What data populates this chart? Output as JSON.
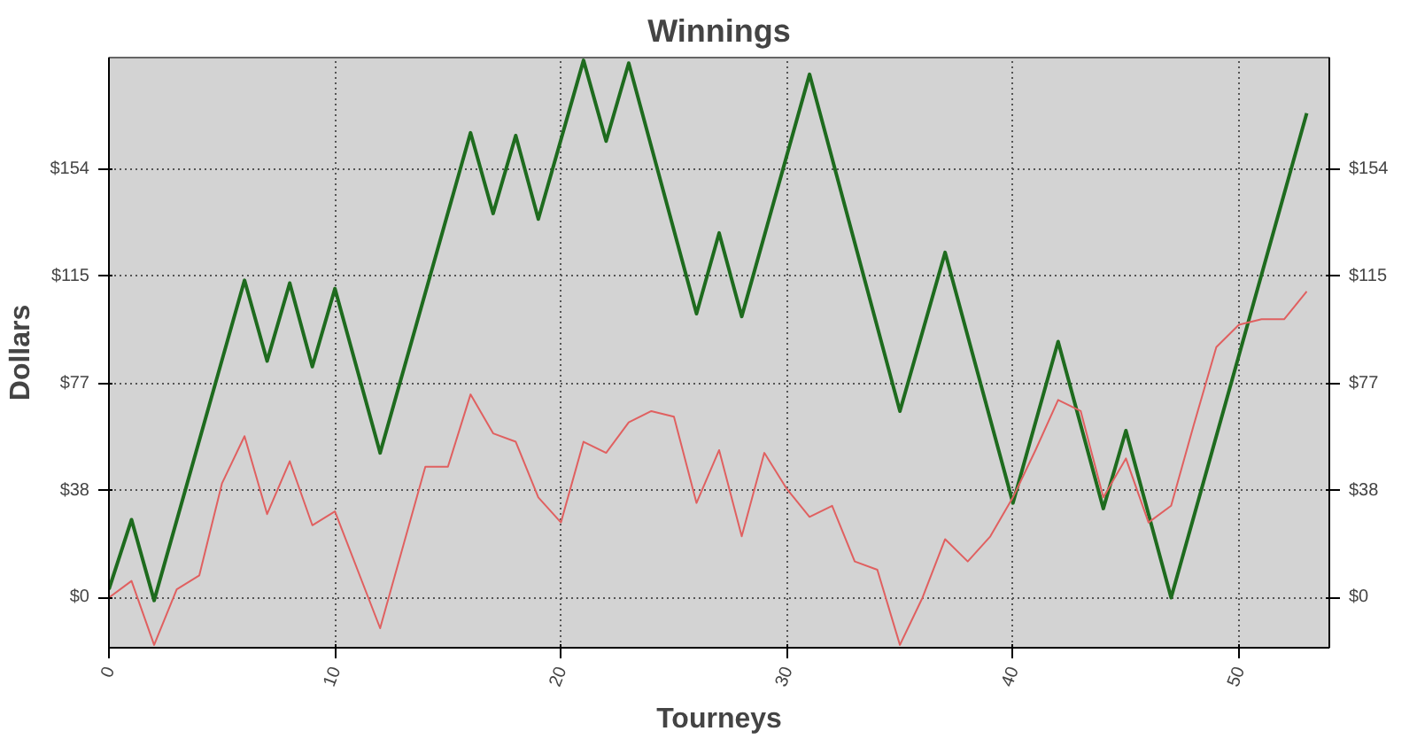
{
  "chart_data": {
    "type": "line",
    "title": "Winnings",
    "xlabel": "Tourneys",
    "ylabel": "Dollars",
    "xlim": [
      0,
      54
    ],
    "xticks": [
      0,
      10,
      20,
      30,
      40,
      50
    ],
    "ylim": [
      -18,
      194
    ],
    "yticks": [
      {
        "value": 0,
        "label": "$0"
      },
      {
        "value": 38.5,
        "label": "$38"
      },
      {
        "value": 77,
        "label": "$77"
      },
      {
        "value": 115.5,
        "label": "$115"
      },
      {
        "value": 154,
        "label": "$154"
      }
    ],
    "y2lim": [
      -18,
      194
    ],
    "y2ticks": [
      {
        "value": 0,
        "label": "$0"
      },
      {
        "value": 38.5,
        "label": "$38"
      },
      {
        "value": 77,
        "label": "$77"
      },
      {
        "value": 115.5,
        "label": "$115"
      },
      {
        "value": 154,
        "label": "$154"
      }
    ],
    "grid": true,
    "marker": "none",
    "line_style": "solid",
    "series": [
      {
        "color": "#1e6b1e",
        "x": [
          0,
          1,
          2,
          6,
          7,
          8,
          9,
          10,
          12,
          16,
          17,
          18,
          19,
          21,
          22,
          23,
          26,
          27,
          28,
          31,
          35,
          37,
          40,
          42,
          44,
          45,
          47,
          53
        ],
        "values": [
          3,
          28,
          -1,
          114,
          85,
          113,
          83,
          111,
          52,
          167,
          138,
          166,
          136,
          193,
          164,
          192,
          102,
          131,
          101,
          188,
          67,
          124,
          34,
          92,
          32,
          60,
          0,
          174
        ]
      },
      {
        "color": "#e06060",
        "x": [
          0,
          1,
          2,
          3,
          4,
          5,
          6,
          7,
          8,
          9,
          10,
          12,
          14,
          15,
          16,
          17,
          18,
          19,
          20,
          21,
          22,
          23,
          24,
          25,
          26,
          27,
          28,
          29,
          30,
          31,
          32,
          33,
          34,
          35,
          36,
          37,
          38,
          39,
          40,
          41,
          42,
          43,
          44,
          45,
          46,
          47,
          48,
          49,
          50,
          51,
          52,
          53
        ],
        "values": [
          0,
          6,
          -17,
          3,
          8,
          41,
          58,
          30,
          49,
          26,
          31,
          -11,
          47,
          47,
          73,
          59,
          56,
          36,
          27,
          56,
          52,
          63,
          67,
          65,
          34,
          53,
          22,
          52,
          39,
          29,
          33,
          13,
          10,
          -17,
          0,
          21,
          13,
          22,
          36,
          53,
          71,
          67,
          36,
          50,
          27,
          33,
          62,
          90,
          98,
          100,
          100,
          110
        ]
      }
    ]
  }
}
